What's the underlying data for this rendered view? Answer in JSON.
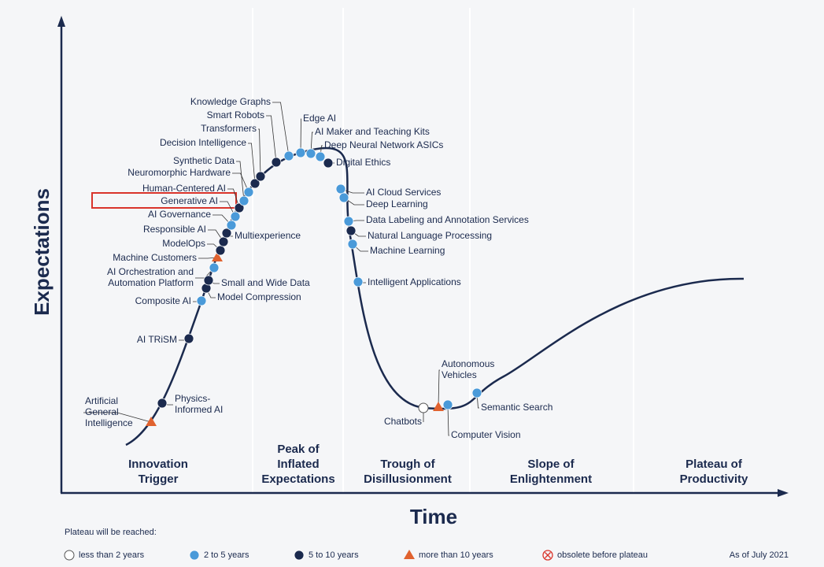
{
  "axes": {
    "y_label": "Expectations",
    "x_label": "Time"
  },
  "phases": [
    {
      "lines": [
        "Innovation",
        "Trigger"
      ]
    },
    {
      "lines": [
        "Peak of",
        "Inflated",
        "Expectations"
      ]
    },
    {
      "lines": [
        "Trough of",
        "Disillusionment"
      ]
    },
    {
      "lines": [
        "Slope of",
        "Enlightenment"
      ]
    },
    {
      "lines": [
        "Plateau of",
        "Productivity"
      ]
    }
  ],
  "items": [
    {
      "label": [
        "Artificial",
        "General",
        "Intelligence"
      ],
      "marker": "triangle"
    },
    {
      "label": [
        "Physics-",
        "Informed AI"
      ],
      "marker": "dark"
    },
    {
      "label": [
        "AI TRiSM"
      ],
      "marker": "dark"
    },
    {
      "label": [
        "Composite AI"
      ],
      "marker": "light"
    },
    {
      "label": [
        "Model Compression"
      ],
      "marker": "dark"
    },
    {
      "label": [
        "Small and Wide Data"
      ],
      "marker": "dark"
    },
    {
      "label": [
        "AI Orchestration and",
        "Automation Platform"
      ],
      "marker": "light"
    },
    {
      "label": [
        "Machine Customers"
      ],
      "marker": "triangle"
    },
    {
      "label": [
        "ModelOps"
      ],
      "marker": "dark"
    },
    {
      "label": [
        "Responsible AI"
      ],
      "marker": "dark"
    },
    {
      "label": [
        "Multiexperience"
      ],
      "marker": "dark"
    },
    {
      "label": [
        "AI Governance"
      ],
      "marker": "light"
    },
    {
      "label": [
        "Generative AI"
      ],
      "marker": "light"
    },
    {
      "label": [
        "Human-Centered AI"
      ],
      "marker": "dark"
    },
    {
      "label": [
        "Synthetic Data"
      ],
      "marker": "light"
    },
    {
      "label": [
        "Neuromorphic Hardware"
      ],
      "marker": "light"
    },
    {
      "label": [
        "Decision Intelligence"
      ],
      "marker": "dark"
    },
    {
      "label": [
        "Transformers"
      ],
      "marker": "dark"
    },
    {
      "label": [
        "Smart Robots"
      ],
      "marker": "dark"
    },
    {
      "label": [
        "Knowledge Graphs"
      ],
      "marker": "light"
    },
    {
      "label": [
        "Edge AI"
      ],
      "marker": "light"
    },
    {
      "label": [
        "AI Maker and Teaching Kits"
      ],
      "marker": "light"
    },
    {
      "label": [
        "Deep Neural Network ASICs"
      ],
      "marker": "light"
    },
    {
      "label": [
        "Digital Ethics"
      ],
      "marker": "dark"
    },
    {
      "label": [
        "AI Cloud Services"
      ],
      "marker": "light"
    },
    {
      "label": [
        "Deep Learning"
      ],
      "marker": "light"
    },
    {
      "label": [
        "Data Labeling and Annotation Services"
      ],
      "marker": "light"
    },
    {
      "label": [
        "Natural Language Processing"
      ],
      "marker": "dark"
    },
    {
      "label": [
        "Machine Learning"
      ],
      "marker": "light"
    },
    {
      "label": [
        "Intelligent Applications"
      ],
      "marker": "light"
    },
    {
      "label": [
        "Chatbots"
      ],
      "marker": "open"
    },
    {
      "label": [
        "Autonomous",
        "Vehicles"
      ],
      "marker": "triangle"
    },
    {
      "label": [
        "Computer Vision"
      ],
      "marker": "light"
    },
    {
      "label": [
        "Semantic Search"
      ],
      "marker": "light"
    }
  ],
  "legend": {
    "title": "Plateau will be reached:",
    "entries": [
      {
        "label": "less than 2 years",
        "marker": "open"
      },
      {
        "label": "2 to 5 years",
        "marker": "light"
      },
      {
        "label": "5 to 10 years",
        "marker": "dark"
      },
      {
        "label": "more than 10 years",
        "marker": "triangle"
      },
      {
        "label": "obsolete before plateau",
        "marker": "obsolete"
      }
    ]
  },
  "as_of": "As of July 2021"
}
